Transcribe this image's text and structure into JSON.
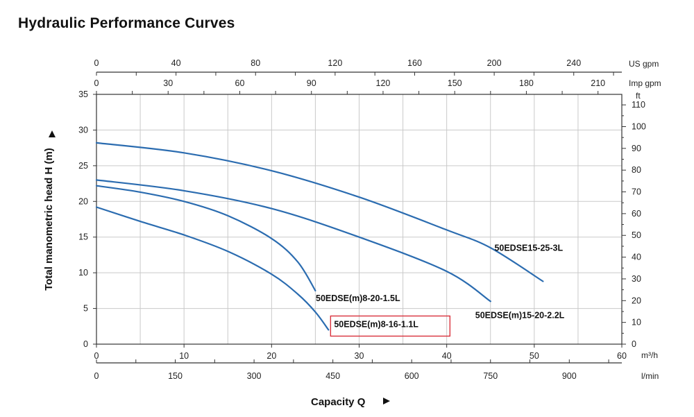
{
  "title": "Hydraulic Performance Curves",
  "colors": {
    "curve": "#2b6cb0",
    "highlight": "#d9313c"
  },
  "chart_data": {
    "type": "line",
    "xlabel": "Capacity Q",
    "ylabel": "Total manometric head H (m)",
    "x_unit": "m³/h",
    "xlim": [
      0,
      60
    ],
    "ylim": [
      0,
      35
    ],
    "x_ticks": [
      0,
      10,
      20,
      30,
      40,
      50,
      60
    ],
    "y_ticks": [
      0,
      5,
      10,
      15,
      20,
      25,
      30,
      35
    ],
    "secondary_axes": {
      "us_gpm": {
        "unit": "US gpm",
        "ticks": [
          0,
          40,
          80,
          120,
          160,
          200,
          240
        ],
        "factor": 4.4029
      },
      "imp_gpm": {
        "unit": "Imp gpm",
        "ticks": [
          0,
          30,
          60,
          90,
          120,
          150,
          180,
          210
        ],
        "factor": 3.6662
      },
      "lmin": {
        "unit": "l/min",
        "ticks": [
          0,
          150,
          300,
          450,
          600,
          750,
          900
        ],
        "factor": 16.6667
      },
      "ft": {
        "unit": "ft",
        "ticks": [
          0,
          10,
          20,
          30,
          40,
          50,
          60,
          70,
          80,
          90,
          100,
          110
        ],
        "factor": 3.28084
      }
    },
    "grid": true,
    "series": [
      {
        "name": "50EDSE(m)8-16-1.1L",
        "highlighted": true,
        "x": [
          0,
          5,
          10,
          15,
          20,
          23,
          25,
          26.5
        ],
        "y": [
          19.2,
          17.2,
          15.3,
          13,
          9.8,
          7,
          4.5,
          2
        ]
      },
      {
        "name": "50EDSE(m)8-20-1.5L",
        "x": [
          0,
          5,
          10,
          15,
          20,
          23,
          25
        ],
        "y": [
          22.2,
          21.3,
          20,
          18,
          14.8,
          11.5,
          7.5
        ]
      },
      {
        "name": "50EDSE(m)15-20-2.2L",
        "x": [
          0,
          10,
          20,
          30,
          40,
          45
        ],
        "y": [
          23,
          21.5,
          19,
          15,
          10.2,
          6
        ]
      },
      {
        "name": "50EDSE15-25-3L",
        "x": [
          0,
          10,
          20,
          30,
          40,
          45,
          51
        ],
        "y": [
          28.2,
          26.8,
          24.3,
          20.6,
          16,
          13.5,
          8.8
        ]
      }
    ]
  }
}
